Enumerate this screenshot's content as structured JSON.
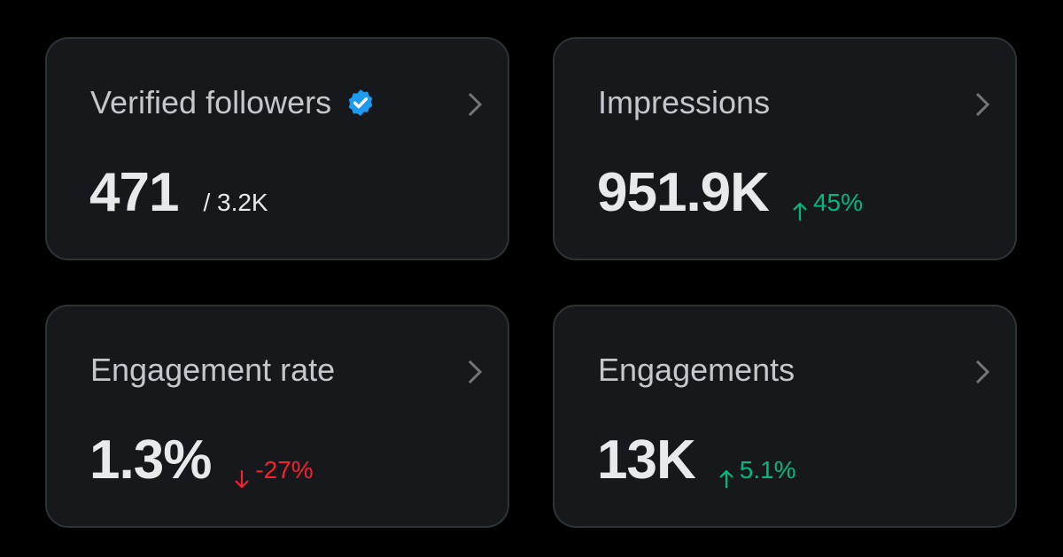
{
  "cards": [
    {
      "title": "Verified followers",
      "value": "471",
      "secondary": "/ 3.2K"
    },
    {
      "title": "Impressions",
      "value": "951.9K",
      "change": "45%"
    },
    {
      "title": "Engagement rate",
      "value": "1.3%",
      "change": "-27%"
    },
    {
      "title": "Engagements",
      "value": "13K",
      "change": "5.1%"
    }
  ]
}
